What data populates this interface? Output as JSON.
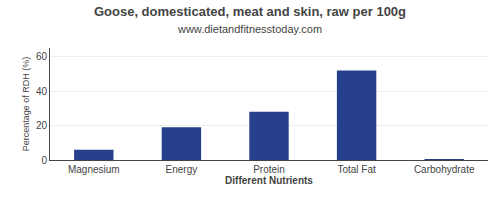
{
  "chart_data": {
    "type": "bar",
    "title": "Goose, domesticated, meat and skin, raw per 100g",
    "subtitle": "www.dietandfitnesstoday.com",
    "xlabel": "Different Nutrients",
    "ylabel": "Percentage of RDH (%)",
    "categories": [
      "Magnesium",
      "Energy",
      "Protein",
      "Total Fat",
      "Carbohydrate"
    ],
    "values": [
      6,
      19,
      28,
      52,
      0.5
    ],
    "color": "#27408B",
    "ylim": [
      0,
      65
    ],
    "yticks": [
      0,
      20,
      40,
      60
    ],
    "grid": true
  }
}
